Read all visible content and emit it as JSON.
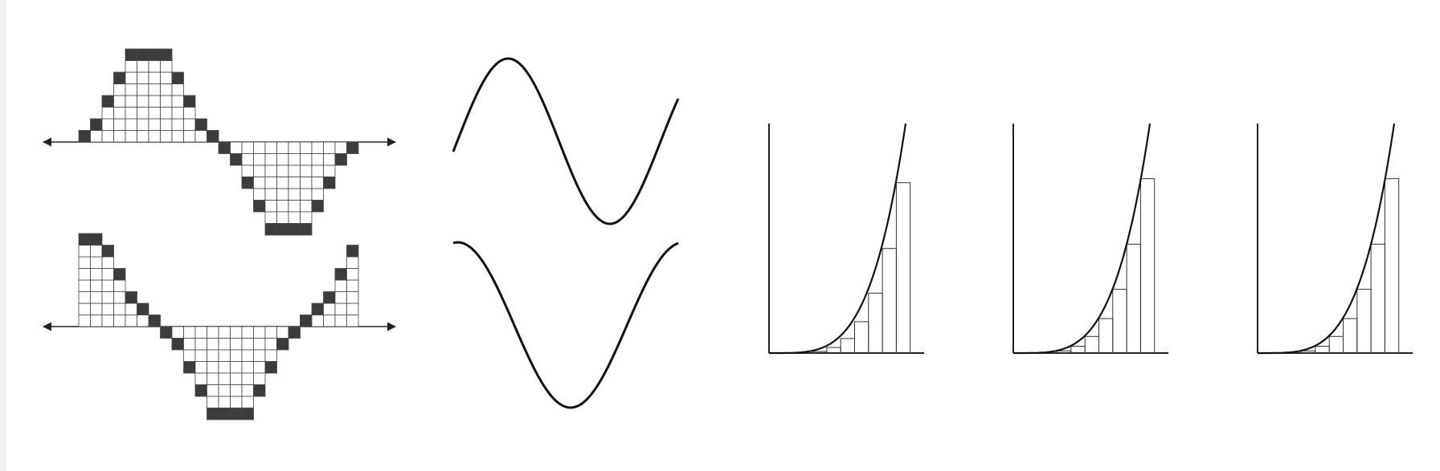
{
  "colors": {
    "background": "#ffffff",
    "ink": "#111111",
    "dark_cell": "#3c3c3c",
    "grid_line": "#444444",
    "frame_edge": "#f2f2f2"
  },
  "panels": [
    {
      "id": "pixel-sine-cosine",
      "description_kind": "pixelated sine and cosine waves on grids with double-headed axes",
      "waves": [
        "sine",
        "cosine"
      ]
    },
    {
      "id": "smooth-sine-cosine",
      "description_kind": "smooth sine and cosine curves",
      "waves": [
        "sine",
        "cosine"
      ]
    },
    {
      "id": "riemann-sums",
      "description_kind": "three graphs of an increasing curve approximated by rectangles",
      "variants": [
        "midpoint",
        "left",
        "right"
      ]
    }
  ]
}
